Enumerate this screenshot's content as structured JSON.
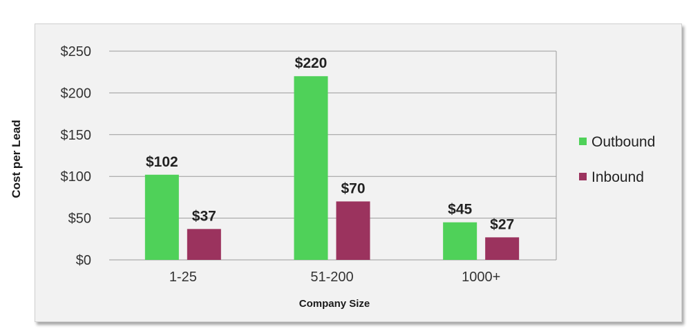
{
  "chart_data": {
    "type": "bar",
    "categories": [
      "1-25",
      "51-200",
      "1000+"
    ],
    "series": [
      {
        "name": "Outbound",
        "color": "#4fd159",
        "values": [
          102,
          220,
          45
        ],
        "labels": [
          "$102",
          "$220",
          "$45"
        ]
      },
      {
        "name": "Inbound",
        "color": "#9b335e",
        "values": [
          37,
          70,
          27
        ],
        "labels": [
          "$37",
          "$70",
          "$27"
        ]
      }
    ],
    "title": "",
    "xlabel": "Company Size",
    "ylabel": "Cost per Lead",
    "ylim": [
      0,
      250
    ],
    "yticks": [
      0,
      50,
      100,
      150,
      200,
      250
    ],
    "ytick_labels": [
      "$0",
      "$50",
      "$100",
      "$150",
      "$200",
      "$250"
    ],
    "grid": true,
    "legend_position": "right"
  }
}
